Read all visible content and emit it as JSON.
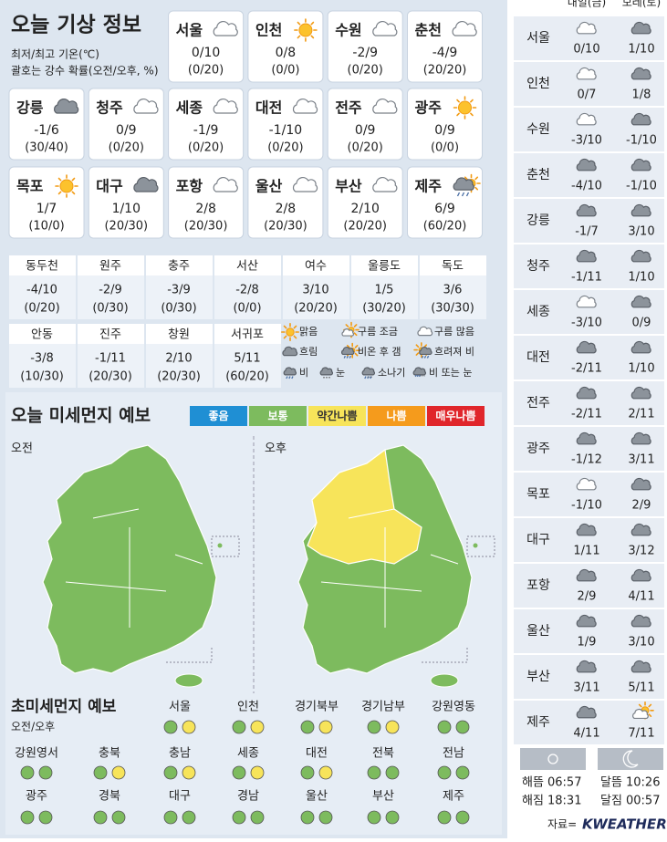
{
  "header": {
    "title": "오늘 기상 정보",
    "notes": [
      "최저/최고 기온(℃)",
      "괄호는 강수 확률(오전/오후, %)"
    ]
  },
  "today": [
    {
      "city": "서울",
      "temp": "0/10",
      "rain": "(0/20)",
      "sky": "구름 많음"
    },
    {
      "city": "인천",
      "temp": "0/8",
      "rain": "(0/0)",
      "sky": "맑음"
    },
    {
      "city": "수원",
      "temp": "-2/9",
      "rain": "(0/20)",
      "sky": "구름 많음"
    },
    {
      "city": "춘천",
      "temp": "-4/9",
      "rain": "(20/20)",
      "sky": "구름 많음"
    },
    {
      "city": "강릉",
      "temp": "-1/6",
      "rain": "(30/40)",
      "sky": "흐림"
    },
    {
      "city": "청주",
      "temp": "0/9",
      "rain": "(0/20)",
      "sky": "구름 많음"
    },
    {
      "city": "세종",
      "temp": "-1/9",
      "rain": "(0/20)",
      "sky": "구름 많음"
    },
    {
      "city": "대전",
      "temp": "-1/10",
      "rain": "(0/20)",
      "sky": "구름 많음"
    },
    {
      "city": "전주",
      "temp": "0/9",
      "rain": "(0/20)",
      "sky": "구름 많음"
    },
    {
      "city": "광주",
      "temp": "0/9",
      "rain": "(0/0)",
      "sky": "맑음"
    },
    {
      "city": "목포",
      "temp": "1/7",
      "rain": "(10/0)",
      "sky": "맑음"
    },
    {
      "city": "대구",
      "temp": "1/10",
      "rain": "(20/30)",
      "sky": "흐림"
    },
    {
      "city": "포항",
      "temp": "2/8",
      "rain": "(20/30)",
      "sky": "구름 많음"
    },
    {
      "city": "울산",
      "temp": "2/8",
      "rain": "(20/30)",
      "sky": "구름 많음"
    },
    {
      "city": "부산",
      "temp": "2/10",
      "rain": "(20/20)",
      "sky": "구름 많음"
    },
    {
      "city": "제주",
      "temp": "6/9",
      "rain": "(60/20)",
      "sky": "비온 후 갬"
    }
  ],
  "others": [
    {
      "city": "동두천",
      "temp": "-4/10",
      "rain": "(0/20)"
    },
    {
      "city": "원주",
      "temp": "-2/9",
      "rain": "(0/30)"
    },
    {
      "city": "충주",
      "temp": "-3/9",
      "rain": "(0/30)"
    },
    {
      "city": "서산",
      "temp": "-2/8",
      "rain": "(0/0)"
    },
    {
      "city": "여수",
      "temp": "3/10",
      "rain": "(20/20)"
    },
    {
      "city": "울릉도",
      "temp": "1/5",
      "rain": "(30/20)"
    },
    {
      "city": "독도",
      "temp": "3/6",
      "rain": "(30/30)"
    },
    {
      "city": "안동",
      "temp": "-3/8",
      "rain": "(10/30)"
    },
    {
      "city": "진주",
      "temp": "-1/11",
      "rain": "(20/30)"
    },
    {
      "city": "창원",
      "temp": "2/10",
      "rain": "(20/30)"
    },
    {
      "city": "서귀포",
      "temp": "5/11",
      "rain": "(60/20)"
    }
  ],
  "legend": [
    "맑음",
    "구름 조금",
    "구름 많음",
    "흐림",
    "비온 후 갬",
    "흐려져 비",
    "비",
    "눈",
    "소나기",
    "비 또는 눈"
  ],
  "dust": {
    "title": "오늘 미세먼지 예보",
    "levels": [
      {
        "label": "좋음",
        "color": "#1f8fd4"
      },
      {
        "label": "보통",
        "color": "#7dbb5e"
      },
      {
        "label": "약간나쁨",
        "color": "#f7e45a"
      },
      {
        "label": "나쁨",
        "color": "#f59b1c"
      },
      {
        "label": "매우나쁨",
        "color": "#e0262b"
      }
    ],
    "maps": [
      {
        "label": "오전",
        "fill": "보통"
      },
      {
        "label": "오후",
        "fill": "보통",
        "highlight": "약간나쁨"
      }
    ]
  },
  "fine_dust": {
    "title": "초미세먼지 예보",
    "subtitle": "오전/오후",
    "regions": [
      {
        "name": "서울",
        "am": "보통",
        "pm": "약간나쁨"
      },
      {
        "name": "인천",
        "am": "보통",
        "pm": "약간나쁨"
      },
      {
        "name": "경기북부",
        "am": "보통",
        "pm": "약간나쁨"
      },
      {
        "name": "경기남부",
        "am": "보통",
        "pm": "약간나쁨"
      },
      {
        "name": "강원영동",
        "am": "보통",
        "pm": "보통"
      },
      {
        "name": "강원영서",
        "am": "보통",
        "pm": "보통"
      },
      {
        "name": "충북",
        "am": "보통",
        "pm": "약간나쁨"
      },
      {
        "name": "충남",
        "am": "보통",
        "pm": "약간나쁨"
      },
      {
        "name": "세종",
        "am": "보통",
        "pm": "약간나쁨"
      },
      {
        "name": "대전",
        "am": "보통",
        "pm": "약간나쁨"
      },
      {
        "name": "전북",
        "am": "보통",
        "pm": "보통"
      },
      {
        "name": "전남",
        "am": "보통",
        "pm": "보통"
      },
      {
        "name": "광주",
        "am": "보통",
        "pm": "보통"
      },
      {
        "name": "경북",
        "am": "보통",
        "pm": "보통"
      },
      {
        "name": "대구",
        "am": "보통",
        "pm": "보통"
      },
      {
        "name": "경남",
        "am": "보통",
        "pm": "보통"
      },
      {
        "name": "울산",
        "am": "보통",
        "pm": "보통"
      },
      {
        "name": "부산",
        "am": "보통",
        "pm": "보통"
      },
      {
        "name": "제주",
        "am": "보통",
        "pm": "보통"
      }
    ]
  },
  "forecast": {
    "days": [
      "내일(금)",
      "모레(토)"
    ],
    "rows": [
      {
        "city": "서울",
        "days": [
          {
            "temp": "0/10",
            "sky": "구름 많음"
          },
          {
            "temp": "1/10",
            "sky": "흐림"
          }
        ]
      },
      {
        "city": "인천",
        "days": [
          {
            "temp": "0/7",
            "sky": "구름 많음"
          },
          {
            "temp": "1/8",
            "sky": "흐림"
          }
        ]
      },
      {
        "city": "수원",
        "days": [
          {
            "temp": "-3/10",
            "sky": "구름 많음"
          },
          {
            "temp": "-1/10",
            "sky": "흐림"
          }
        ]
      },
      {
        "city": "춘천",
        "days": [
          {
            "temp": "-4/10",
            "sky": "흐림"
          },
          {
            "temp": "-1/10",
            "sky": "흐림"
          }
        ]
      },
      {
        "city": "강릉",
        "days": [
          {
            "temp": "-1/7",
            "sky": "흐림"
          },
          {
            "temp": "3/10",
            "sky": "흐림"
          }
        ]
      },
      {
        "city": "청주",
        "days": [
          {
            "temp": "-1/11",
            "sky": "흐림"
          },
          {
            "temp": "1/10",
            "sky": "흐림"
          }
        ]
      },
      {
        "city": "세종",
        "days": [
          {
            "temp": "-3/10",
            "sky": "구름 많음"
          },
          {
            "temp": "0/9",
            "sky": "흐림"
          }
        ]
      },
      {
        "city": "대전",
        "days": [
          {
            "temp": "-2/11",
            "sky": "흐림"
          },
          {
            "temp": "1/10",
            "sky": "흐림"
          }
        ]
      },
      {
        "city": "전주",
        "days": [
          {
            "temp": "-2/11",
            "sky": "흐림"
          },
          {
            "temp": "2/11",
            "sky": "흐림"
          }
        ]
      },
      {
        "city": "광주",
        "days": [
          {
            "temp": "-1/12",
            "sky": "흐림"
          },
          {
            "temp": "3/11",
            "sky": "흐림"
          }
        ]
      },
      {
        "city": "목포",
        "days": [
          {
            "temp": "-1/10",
            "sky": "구름 많음"
          },
          {
            "temp": "2/9",
            "sky": "흐림"
          }
        ]
      },
      {
        "city": "대구",
        "days": [
          {
            "temp": "1/11",
            "sky": "흐림"
          },
          {
            "temp": "3/12",
            "sky": "흐림"
          }
        ]
      },
      {
        "city": "포항",
        "days": [
          {
            "temp": "2/9",
            "sky": "흐림"
          },
          {
            "temp": "4/11",
            "sky": "흐림"
          }
        ]
      },
      {
        "city": "울산",
        "days": [
          {
            "temp": "1/9",
            "sky": "흐림"
          },
          {
            "temp": "3/10",
            "sky": "흐림"
          }
        ]
      },
      {
        "city": "부산",
        "days": [
          {
            "temp": "3/11",
            "sky": "흐림"
          },
          {
            "temp": "5/11",
            "sky": "흐림"
          }
        ]
      },
      {
        "city": "제주",
        "days": [
          {
            "temp": "4/11",
            "sky": "흐림"
          },
          {
            "temp": "7/11",
            "sky": "구름 조금"
          }
        ]
      }
    ]
  },
  "astro": {
    "sun": [
      {
        "label": "해뜸",
        "time": "06:57"
      },
      {
        "label": "해짐",
        "time": "18:31"
      }
    ],
    "moon": [
      {
        "label": "달뜸",
        "time": "10:26"
      },
      {
        "label": "달짐",
        "time": "00:57"
      }
    ]
  },
  "source": {
    "label": "자료=",
    "brand": "KWEATHER"
  }
}
